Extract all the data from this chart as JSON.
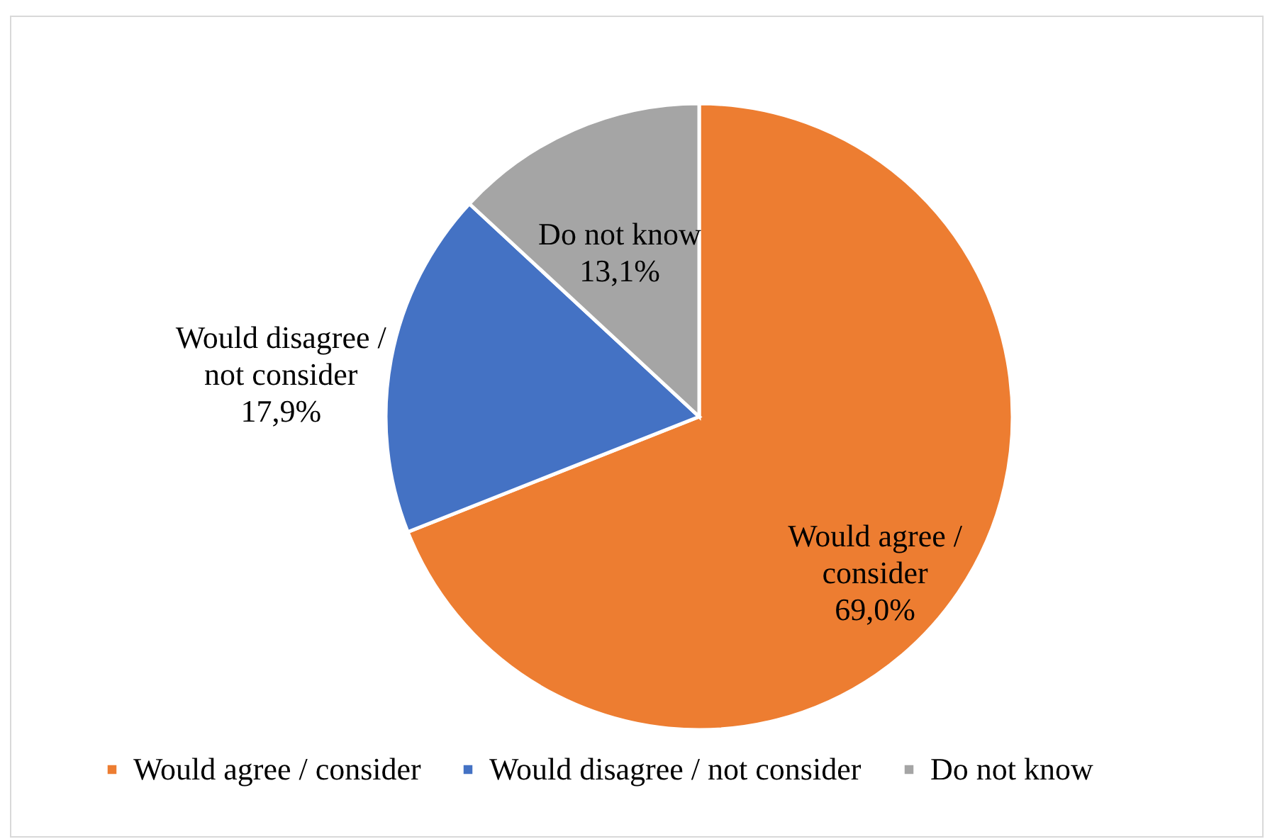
{
  "chart_data": {
    "type": "pie",
    "categories": [
      "Would agree / consider",
      "Would disagree / not consider",
      "Do not know"
    ],
    "values": [
      69.0,
      17.9,
      13.1
    ],
    "value_labels": [
      "69,0%",
      "17,9%",
      "13,1%"
    ],
    "colors": [
      "#ed7d31",
      "#4472c4",
      "#a5a5a5"
    ],
    "legend": "bottom"
  }
}
